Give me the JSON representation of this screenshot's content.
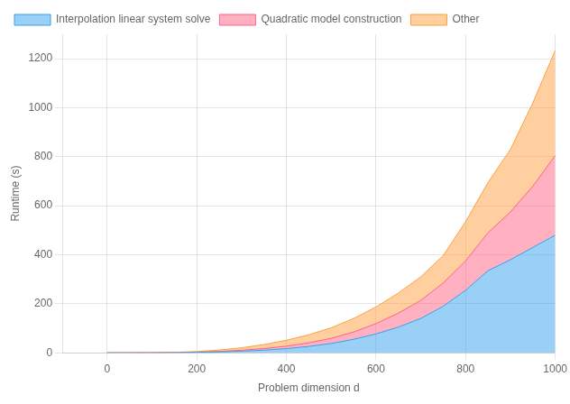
{
  "chart_data": {
    "type": "area",
    "xlabel": "Problem dimension d",
    "ylabel": "Runtime (s)",
    "x": [
      0,
      50,
      100,
      150,
      200,
      250,
      300,
      350,
      400,
      450,
      500,
      550,
      600,
      650,
      700,
      750,
      800,
      850,
      900,
      950,
      1000
    ],
    "series": [
      {
        "name": "Interpolation linear system solve",
        "values": [
          0,
          0.02,
          0.15,
          0.5,
          1.5,
          3.5,
          6.5,
          11.0,
          17.0,
          26.0,
          38.0,
          55.0,
          77.0,
          105.0,
          140.0,
          190.0,
          255.0,
          335.0,
          380.0,
          430.0,
          480.0
        ]
      },
      {
        "name": "Quadratic model construction",
        "values": [
          0,
          0.01,
          0.1,
          0.35,
          1.0,
          2.2,
          4.0,
          6.5,
          10.0,
          14.5,
          21.0,
          30.0,
          42.0,
          57.0,
          74.0,
          95.0,
          120.0,
          155.0,
          195.0,
          250.0,
          325.0
        ]
      },
      {
        "name": "Other",
        "values": [
          0,
          0.03,
          0.25,
          0.8,
          2.5,
          5.5,
          10.0,
          16.0,
          24.0,
          33.0,
          43.0,
          55.0,
          68.0,
          82.0,
          96.0,
          112.0,
          160.0,
          205.0,
          255.0,
          340.0,
          430.0
        ]
      }
    ],
    "xlim": [
      -100,
      1000
    ],
    "ylim": [
      0,
      1300
    ],
    "xticks": [
      0,
      200,
      400,
      600,
      800,
      1000
    ],
    "yticks": [
      0,
      200,
      400,
      600,
      800,
      1000,
      1200
    ],
    "stacked": true,
    "grid": true,
    "legend": "upper left"
  }
}
